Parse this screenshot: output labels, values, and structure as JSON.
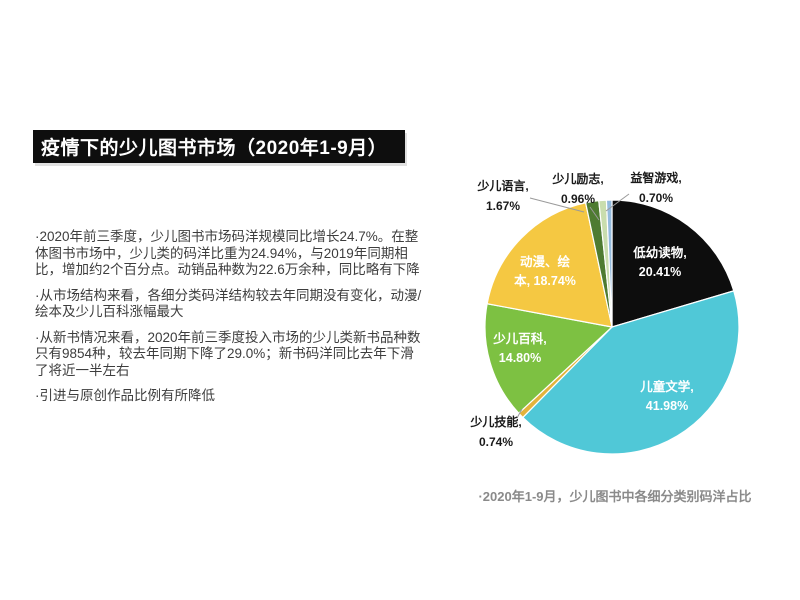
{
  "title": {
    "text": "疫情下的少儿图书市场（2020年1-9月）"
  },
  "bullets": [
    "·2020年前三季度，少儿图书市场码洋规模同比增长24.7%。在整体图书市场中，少儿类的码洋比重为24.94%，与2019年同期相比，增加约2个百分点。动销品种数为22.6万余种，同比略有下降",
    "·从市场结构来看，各细分类码洋结构较去年同期没有变化，动漫/绘本及少儿百科涨幅最大",
    "·从新书情况来看，2020年前三季度投入市场的少儿类新书品种数只有9854种，较去年同期下降了29.0%；新书码洋同比去年下滑了将近一半左右",
    "·引进与原创作品比例有所降低"
  ],
  "caption": "·2020年1-9月，少儿图书中各细分类别码洋占比",
  "colors": {
    "title_bg": "#0e0e0e",
    "title_text": "#ffffff",
    "body_text": "#3d3d3d",
    "caption_text": "#8a8a8a",
    "leader_line": "#9a9a9a"
  },
  "chart_data": {
    "type": "pie",
    "title": "2020年1-9月少儿图书中各细分类别码洋占比",
    "unit": "%",
    "start_angle_deg": 0,
    "direction": "clockwise",
    "slices": [
      {
        "label": "低幼读物",
        "value": 20.41,
        "pct_text": "20.41%",
        "color": "#0d0d0d",
        "label_lines": [
          "低幼读物,",
          "20.41%"
        ],
        "label_position": "inside"
      },
      {
        "label": "儿童文学",
        "value": 41.98,
        "pct_text": "41.98%",
        "color": "#50c8d7",
        "label_lines": [
          "儿童文学,",
          "41.98%"
        ],
        "label_position": "inside"
      },
      {
        "label": "少儿技能",
        "value": 0.74,
        "pct_text": "0.74%",
        "color": "#e3b33c",
        "label_lines": [
          "少儿技能,",
          "0.74%"
        ],
        "label_position": "outside"
      },
      {
        "label": "少儿百科",
        "value": 14.8,
        "pct_text": "14.80%",
        "color": "#7dc142",
        "label_lines": [
          "少儿百科,",
          "14.80%"
        ],
        "label_position": "inside"
      },
      {
        "label": "动漫、绘本",
        "value": 18.74,
        "pct_text": "18.74%",
        "color": "#f5c842",
        "label_lines": [
          "动漫、绘",
          "本, 18.74%"
        ],
        "label_position": "inside"
      },
      {
        "label": "少儿语言",
        "value": 1.67,
        "pct_text": "1.67%",
        "color": "#4e7b31",
        "label_lines": [
          "少儿语言,",
          "1.67%"
        ],
        "label_position": "outside"
      },
      {
        "label": "少儿励志",
        "value": 0.96,
        "pct_text": "0.96%",
        "color": "#c9ddae",
        "label_lines": [
          "少儿励志,",
          "0.96%"
        ],
        "label_position": "outside"
      },
      {
        "label": "益智游戏",
        "value": 0.7,
        "pct_text": "0.70%",
        "color": "#94bbde",
        "label_lines": [
          "益智游戏,",
          "0.70%"
        ],
        "label_position": "outside"
      }
    ]
  }
}
